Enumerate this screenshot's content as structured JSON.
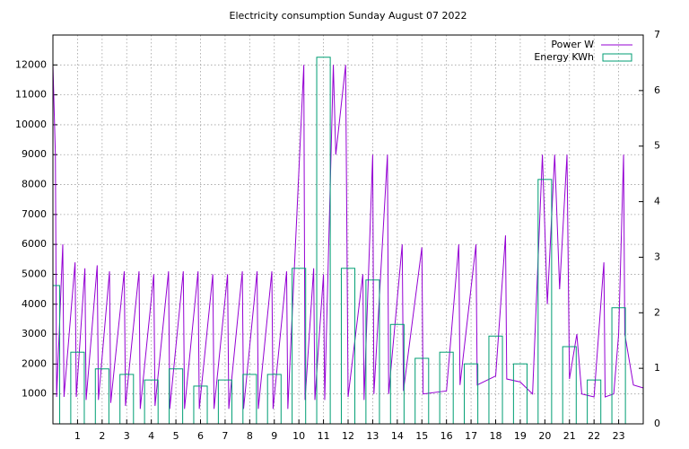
{
  "chart_data": {
    "type": "line",
    "title": "Electricity consumption Sunday August 07 2022",
    "xlim": [
      0,
      24
    ],
    "xticks": [
      1,
      2,
      3,
      4,
      5,
      6,
      7,
      8,
      9,
      10,
      11,
      12,
      13,
      14,
      15,
      16,
      17,
      18,
      19,
      20,
      21,
      22,
      23
    ],
    "ylim": [
      0,
      13000
    ],
    "yticks": [
      1000,
      2000,
      3000,
      4000,
      5000,
      6000,
      7000,
      8000,
      9000,
      10000,
      11000,
      12000
    ],
    "y2lim": [
      0,
      7
    ],
    "y2ticks": [
      0,
      1,
      2,
      3,
      4,
      5,
      6,
      7
    ],
    "grid": true,
    "legend": "top-right",
    "series": [
      {
        "name": "Power W",
        "color": "#9400d3",
        "style": "line",
        "x": [
          0,
          0.1,
          0.15,
          0.4,
          0.45,
          0.9,
          0.95,
          1.3,
          1.35,
          1.8,
          1.85,
          2.3,
          2.35,
          2.9,
          2.95,
          3.5,
          3.55,
          4.1,
          4.15,
          4.7,
          4.75,
          5.3,
          5.35,
          5.9,
          5.95,
          6.5,
          6.55,
          7.1,
          7.15,
          7.7,
          7.75,
          8.3,
          8.35,
          8.9,
          8.95,
          9.5,
          9.55,
          10.2,
          10.25,
          10.6,
          10.65,
          11.0,
          11.05,
          11.4,
          11.5,
          11.9,
          12.0,
          12.6,
          12.65,
          13.0,
          13.05,
          13.6,
          13.65,
          14.2,
          14.25,
          15.0,
          15.05,
          16.0,
          16.5,
          16.55,
          17.2,
          17.25,
          18.0,
          18.4,
          18.45,
          19.0,
          19.5,
          19.9,
          20.1,
          20.4,
          20.6,
          20.9,
          21.0,
          21.3,
          21.5,
          22.0,
          22.4,
          22.45,
          22.8,
          23.0,
          23.2,
          23.25,
          23.6,
          24
        ],
        "values": [
          12000,
          9000,
          900,
          6000,
          900,
          5400,
          900,
          5200,
          800,
          5300,
          800,
          5100,
          700,
          5100,
          600,
          5100,
          500,
          5000,
          600,
          5100,
          500,
          5100,
          500,
          5100,
          500,
          5000,
          500,
          5000,
          500,
          5100,
          500,
          5100,
          500,
          5100,
          500,
          5100,
          500,
          12000,
          800,
          5200,
          800,
          5000,
          800,
          12000,
          9000,
          12000,
          900,
          5000,
          800,
          9000,
          1000,
          9000,
          1000,
          6000,
          1100,
          5900,
          1000,
          1100,
          6000,
          1300,
          6000,
          1300,
          1600,
          6300,
          1500,
          1400,
          1000,
          9000,
          4000,
          9000,
          4500,
          9000,
          1500,
          3000,
          1000,
          900,
          5400,
          900,
          1000,
          3000,
          9000,
          3000,
          1300,
          1200
        ]
      },
      {
        "name": "Energy KWh",
        "color": "#009e73",
        "style": "boxes",
        "axis": "y2",
        "x": [
          0,
          1,
          2,
          3,
          4,
          5,
          6,
          7,
          8,
          9,
          10,
          11,
          12,
          13,
          14,
          15,
          16,
          17,
          18,
          19,
          20,
          21,
          22,
          23
        ],
        "values": [
          2.49,
          1.29,
          0.99,
          0.89,
          0.79,
          0.99,
          0.68,
          0.79,
          0.89,
          0.89,
          2.8,
          6.6,
          2.8,
          2.59,
          1.79,
          1.18,
          1.29,
          1.08,
          1.58,
          1.08,
          4.4,
          1.39,
          0.79,
          2.09
        ]
      }
    ]
  }
}
